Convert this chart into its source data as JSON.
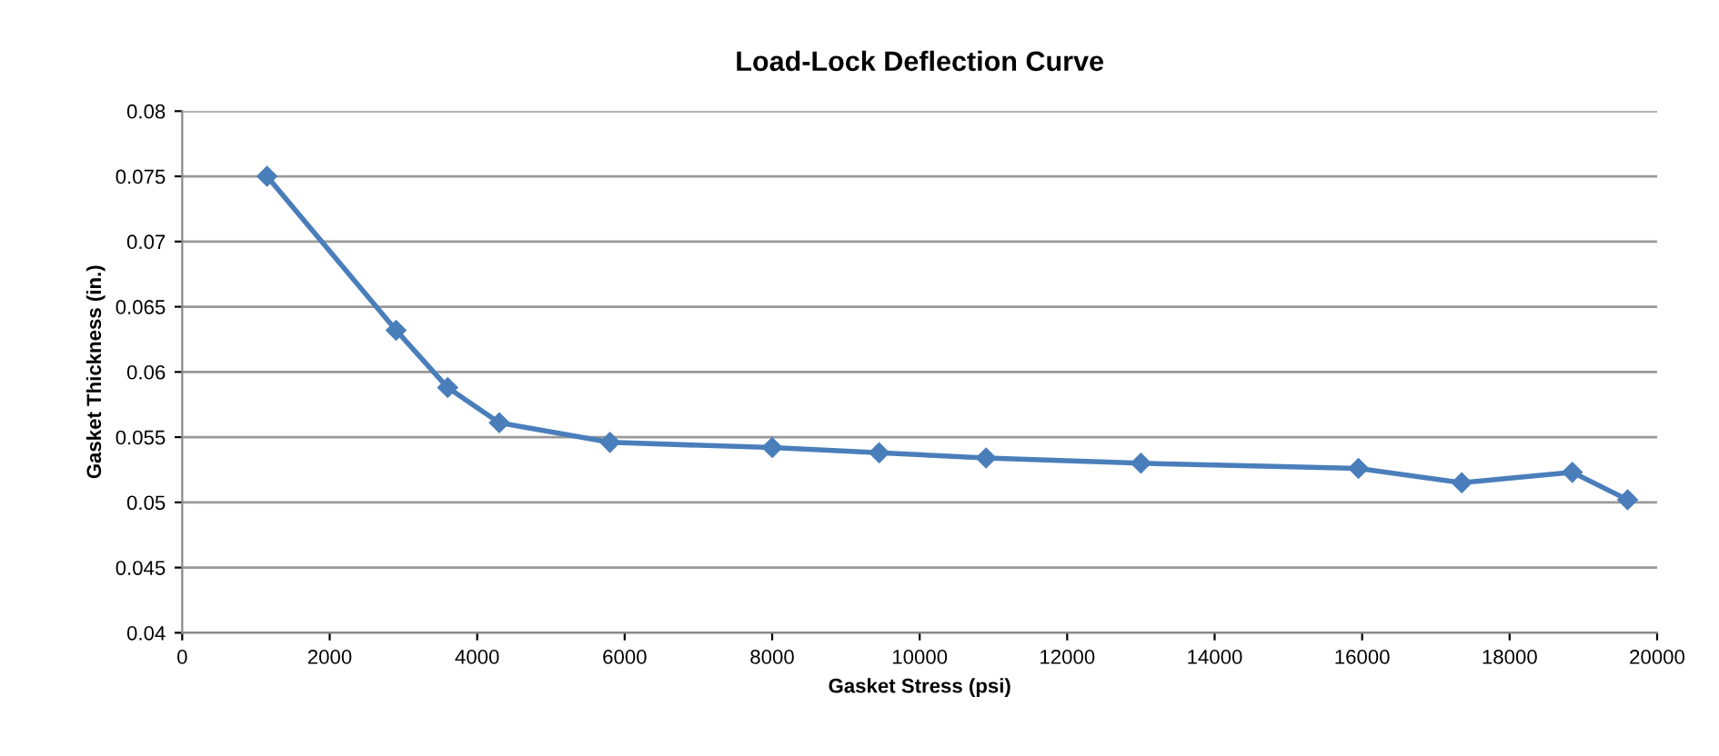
{
  "chart_data": {
    "type": "line",
    "title": "Load-Lock Deflection Curve",
    "xlabel": "Gasket Stress (psi)",
    "ylabel": "Gasket Thickness (in.)",
    "x": [
      1150,
      2900,
      3600,
      4300,
      5800,
      8000,
      9450,
      10900,
      13000,
      15950,
      17350,
      18850,
      19600
    ],
    "series": [
      {
        "color": "#4a7ebb",
        "values": [
          0.075,
          0.0632,
          0.0588,
          0.0561,
          0.0546,
          0.0542,
          0.0538,
          0.0534,
          0.053,
          0.0526,
          0.0515,
          0.0523,
          0.0502
        ]
      }
    ],
    "xlim": [
      0,
      20000
    ],
    "xticks": [
      0,
      2000,
      4000,
      6000,
      8000,
      10000,
      12000,
      14000,
      16000,
      18000,
      20000
    ],
    "ylim": [
      0.04,
      0.08
    ],
    "yticks": [
      0.04,
      0.045,
      0.05,
      0.055,
      0.06,
      0.065,
      0.07,
      0.075,
      0.08
    ],
    "grid": "y",
    "marker": "diamond",
    "line_style": "solid",
    "legend": false
  }
}
